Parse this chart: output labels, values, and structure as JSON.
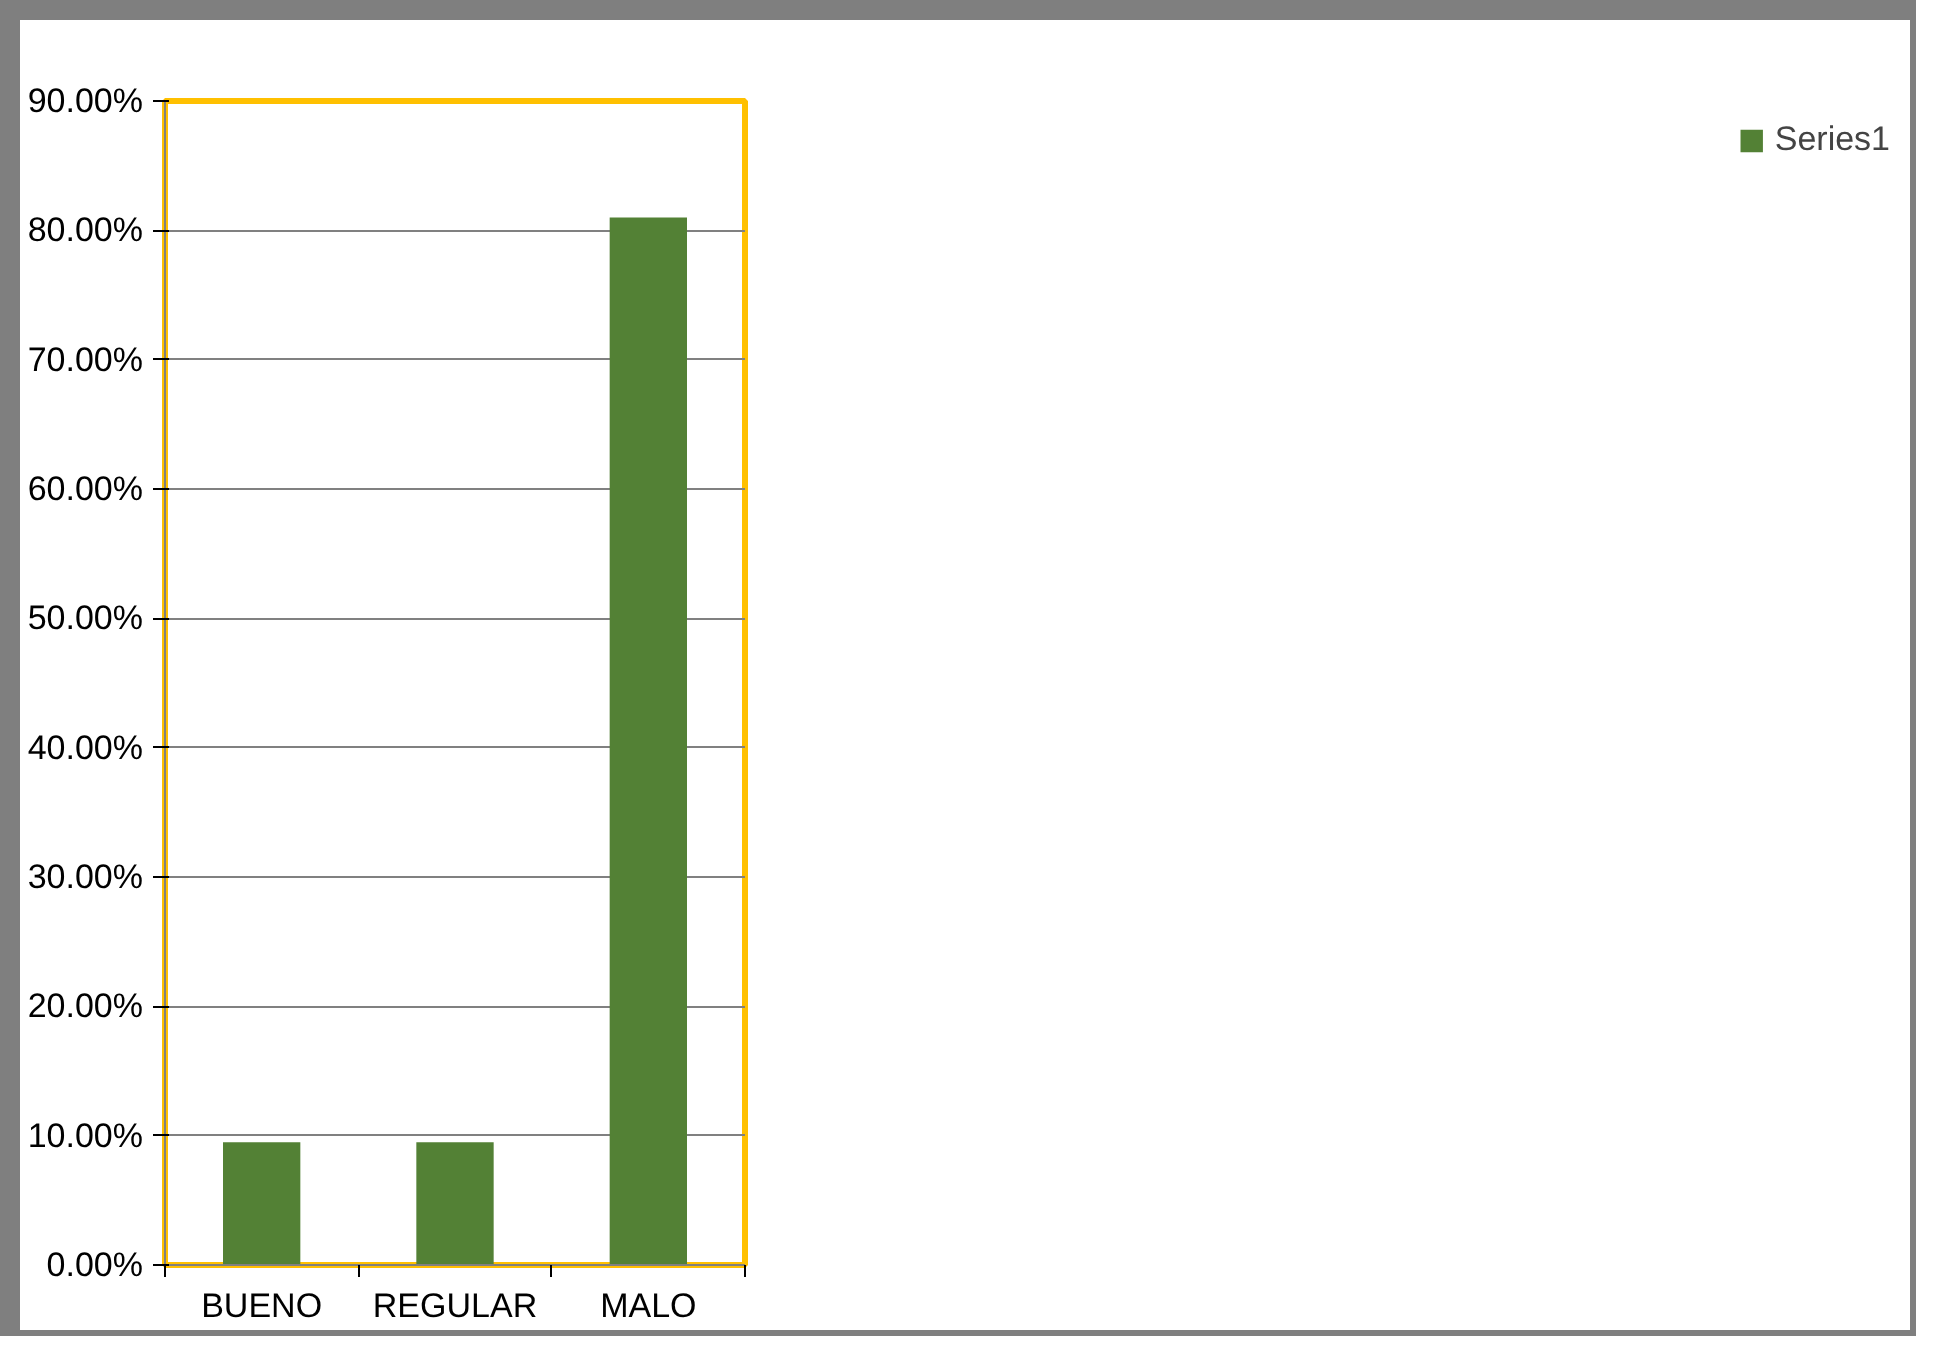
{
  "chart_data": {
    "type": "bar",
    "categories": [
      "BUENO",
      "REGULAR",
      "MALO"
    ],
    "series": [
      {
        "name": "Series1",
        "color": "#538135",
        "values": [
          9.5,
          9.5,
          81.0
        ]
      }
    ],
    "ylim": [
      0,
      90
    ],
    "yticks": [
      {
        "value": 0,
        "label": "0.00%"
      },
      {
        "value": 10,
        "label": "10.00%"
      },
      {
        "value": 20,
        "label": "20.00%"
      },
      {
        "value": 30,
        "label": "30.00%"
      },
      {
        "value": 40,
        "label": "40.00%"
      },
      {
        "value": 50,
        "label": "50.00%"
      },
      {
        "value": 60,
        "label": "60.00%"
      },
      {
        "value": 70,
        "label": "70.00%"
      },
      {
        "value": 80,
        "label": "80.00%"
      },
      {
        "value": 90,
        "label": "90.00%"
      }
    ],
    "grid": "y",
    "legend": "right"
  }
}
